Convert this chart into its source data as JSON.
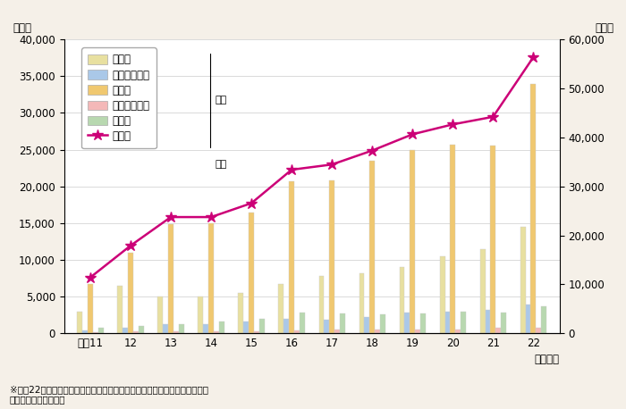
{
  "years": [
    "平成11",
    "12",
    "13",
    "14",
    "15",
    "16",
    "17",
    "18",
    "19",
    "20",
    "21",
    "22"
  ],
  "jitsufu": [
    3000,
    6500,
    5000,
    5000,
    5500,
    6700,
    7800,
    8200,
    9000,
    10500,
    11500,
    14500
  ],
  "jitsufu_igai": [
    400,
    700,
    1300,
    1300,
    1600,
    2000,
    1800,
    2200,
    2800,
    2900,
    3200,
    3900
  ],
  "jitsuhaha": [
    6700,
    11000,
    14900,
    15000,
    16400,
    20700,
    20800,
    23500,
    25000,
    25700,
    25600,
    34000
  ],
  "jitsuhaha_igai": [
    200,
    300,
    300,
    300,
    300,
    400,
    500,
    500,
    500,
    500,
    700,
    800
  ],
  "sonota": [
    800,
    1000,
    1300,
    1600,
    2000,
    2800,
    2700,
    2600,
    2700,
    3000,
    2800,
    3700
  ],
  "sousuu": [
    11400,
    17900,
    23738,
    23738,
    26569,
    33408,
    34472,
    37323,
    40639,
    42664,
    44210,
    56384
  ],
  "left_ylim": [
    0,
    40000
  ],
  "right_ylim": [
    0,
    60000
  ],
  "left_yticks": [
    0,
    5000,
    10000,
    15000,
    20000,
    25000,
    30000,
    35000,
    40000
  ],
  "right_yticks": [
    0,
    10000,
    20000,
    30000,
    40000,
    50000,
    60000
  ],
  "bar_colors": [
    "#e8e0a0",
    "#aac8e8",
    "#f0c870",
    "#f4b8b8",
    "#b8d8b0"
  ],
  "bar_edge_color": "#cccccc",
  "line_color": "#cc0077",
  "left_ylabel": "（人）",
  "right_ylabel": "（人）",
  "xlabel": "（年度）",
  "legend_labels": [
    "実　父",
    "実父以外の父",
    "実　母",
    "実母以外の母",
    "その他",
    "総　数"
  ],
  "left_axis_label": "左軸",
  "right_axis_label": "右軸",
  "footnote1": "※平成22年度は、東日本大震災の影響により、福島県を除いて集計した数値",
  "footnote2": "出典：厚生労働省資料",
  "background_color": "#f5f0e8"
}
